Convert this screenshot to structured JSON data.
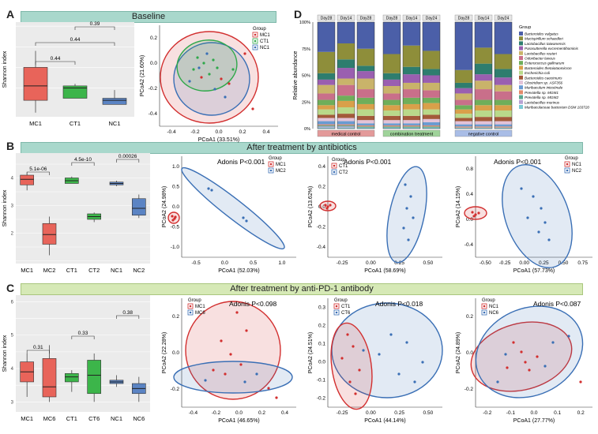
{
  "panels": {
    "A": {
      "letter": "A",
      "banner": "Baseline",
      "boxplot": {
        "ylabel": "Shannon index",
        "groups": [
          "MC1",
          "CT1",
          "NC1"
        ],
        "colors": [
          "#e8645a",
          "#3cb54a",
          "#5b84c4"
        ],
        "boxes": [
          {
            "q1": 3.7,
            "med": 4.05,
            "q3": 4.5,
            "min": 3.4,
            "max": 4.9
          },
          {
            "q1": 3.75,
            "med": 4.0,
            "q3": 4.05,
            "min": 3.75,
            "max": 4.1
          },
          {
            "q1": 3.6,
            "med": 3.7,
            "q3": 3.75,
            "min": 3.6,
            "max": 3.95
          }
        ],
        "brackets": [
          {
            "from": 0,
            "to": 1,
            "label": "0.44"
          },
          {
            "from": 0,
            "to": 2,
            "label": "0.44"
          },
          {
            "from": 1,
            "to": 2,
            "label": "0.39"
          }
        ]
      },
      "pcoa": {
        "xlabel": "PCoA1 (33.51%)",
        "ylabel": "PCoA2 (21.60%)",
        "legend_title": "Group",
        "legend": [
          "MC1",
          "CT1",
          "NC1"
        ],
        "xticks": [
          "-0.4",
          "-0.2",
          "0.0",
          "0.2",
          "0.4"
        ],
        "yticks": [
          "0.2",
          "0.0",
          "-0.2",
          "-0.4"
        ]
      },
      "stacked": {
        "ylabel": "Relative abundance",
        "yticks": [
          "100%",
          "75%",
          "50%",
          "25%",
          "0%"
        ],
        "groups": [
          {
            "name": "medical control",
            "days": [
              "Day28",
              "Day14",
              "Day28"
            ],
            "color": "#e39a9a"
          },
          {
            "name": "combination treatment",
            "days": [
              "Day28",
              "Day14",
              "Day24"
            ],
            "color": "#9fd39a"
          },
          {
            "name": "negative control",
            "days": [
              "Day28",
              "Day14",
              "Day24"
            ],
            "color": "#a9bde6"
          }
        ],
        "legend_title": "Group",
        "taxa": [
          {
            "name": "Bacteroides vulgatus",
            "color": "#4b5fa8"
          },
          {
            "name": "Mucispirillum schaedleri",
            "color": "#8e8e3a"
          },
          {
            "name": "Lactobacillus taiwanensis",
            "color": "#2e7d6e"
          },
          {
            "name": "Parasutterella excrementihominis",
            "color": "#9a5fb0"
          },
          {
            "name": "Lactobacillus reuteri",
            "color": "#c9b36a"
          },
          {
            "name": "Odoribacter laneus",
            "color": "#c96f8a"
          },
          {
            "name": "Enterococcus gallinarum",
            "color": "#6fae5a"
          },
          {
            "name": "Bacteroides thetaiotaomicron",
            "color": "#d9a04a"
          },
          {
            "name": "Escherichia coli",
            "color": "#b9d98a"
          },
          {
            "name": "Bacteroides caecimuris",
            "color": "#a35a3a"
          },
          {
            "name": "Clostridium sp. ASF356",
            "color": "#e3c3d8"
          },
          {
            "name": "Muribaculum intestinale",
            "color": "#6a9bd1"
          },
          {
            "name": "Prevotella sp. MGM1",
            "color": "#e38a6a"
          },
          {
            "name": "Prevotella sp. MGM2",
            "color": "#5aa88f"
          },
          {
            "name": "Lactobacillus murinus",
            "color": "#b7a3d3"
          },
          {
            "name": "Muribaculaceae bacterium DSM 103720",
            "color": "#7cc8d4"
          }
        ]
      }
    },
    "B": {
      "letter": "B",
      "banner": "After treatment by antibiotics",
      "boxplot": {
        "ylabel": "Shannon index",
        "groups": [
          "MC1",
          "MC2",
          "CT1",
          "CT2",
          "NC1",
          "NC2"
        ],
        "colors": [
          "#e8645a",
          "#e8645a",
          "#3cb54a",
          "#3cb54a",
          "#5b84c4",
          "#5b84c4"
        ],
        "boxes": [
          {
            "q1": 3.75,
            "med": 3.95,
            "q3": 4.1,
            "min": 3.55,
            "max": 4.2
          },
          {
            "q1": 1.6,
            "med": 1.95,
            "q3": 2.35,
            "min": 1.2,
            "max": 2.6
          },
          {
            "q1": 3.8,
            "med": 3.9,
            "q3": 4.0,
            "min": 3.8,
            "max": 4.05
          },
          {
            "q1": 2.5,
            "med": 2.6,
            "q3": 2.7,
            "min": 2.4,
            "max": 2.75
          },
          {
            "q1": 3.75,
            "med": 3.8,
            "q3": 3.85,
            "min": 3.7,
            "max": 3.9
          },
          {
            "q1": 2.65,
            "med": 2.9,
            "q3": 3.25,
            "min": 2.55,
            "max": 3.4
          }
        ],
        "brackets": [
          {
            "from": 0,
            "to": 1,
            "label": "5.1e-06"
          },
          {
            "from": 2,
            "to": 3,
            "label": "4.5e-10"
          },
          {
            "from": 4,
            "to": 5,
            "label": "0.00026"
          }
        ],
        "yticks": [
          "4",
          "3",
          "2"
        ]
      },
      "pcoas": [
        {
          "adonis": "Adonis P<0.001",
          "xlabel": "PCoA1 (52.03%)",
          "ylabel": "PCoA2 (24.98%)",
          "legend": [
            "MC1",
            "MC2"
          ],
          "xticks": [
            "-0.5",
            "0.0",
            "0.5",
            "1.0"
          ],
          "yticks": [
            "1.0",
            "0.5",
            "0.0",
            "-0.5",
            "-1.0"
          ]
        },
        {
          "adonis": "Adonis P<0.001",
          "xlabel": "PCoA1 (58.69%)",
          "ylabel": "PCoA2 (13.62%)",
          "legend": [
            "CT1",
            "CT2"
          ],
          "xticks": [
            "-0.25",
            "0.00",
            "0.25",
            "0.50"
          ],
          "yticks": [
            "0.4",
            "0.2",
            "0.0",
            "-0.2",
            "-0.4"
          ]
        },
        {
          "adonis": "Adonis P<0.001",
          "xlabel": "PCoA1 (57.73%)",
          "ylabel": "PCoA2 (14.15%)",
          "legend": [
            "NC1",
            "NC2"
          ],
          "xticks": [
            "-0.50",
            "-0.25",
            "0.00",
            "0.25",
            "0.50",
            "0.75"
          ],
          "yticks": [
            "0.8",
            "0.4",
            "0.0",
            "-0.4"
          ]
        }
      ]
    },
    "C": {
      "letter": "C",
      "banner": "After treatment by anti-PD-1 antibody",
      "boxplot": {
        "ylabel": "Shannon index",
        "groups": [
          "MC1",
          "MC6",
          "CT1",
          "CT6",
          "NC1",
          "NC6"
        ],
        "colors": [
          "#e8645a",
          "#e8645a",
          "#3cb54a",
          "#3cb54a",
          "#5b84c4",
          "#5b84c4"
        ],
        "boxes": [
          {
            "q1": 3.6,
            "med": 3.9,
            "q3": 4.2,
            "min": 3.15,
            "max": 4.45
          },
          {
            "q1": 3.15,
            "med": 3.45,
            "q3": 4.3,
            "min": 3.0,
            "max": 4.7
          },
          {
            "q1": 3.6,
            "med": 3.75,
            "q3": 3.85,
            "min": 3.3,
            "max": 3.95
          },
          {
            "q1": 3.25,
            "med": 3.8,
            "q3": 4.25,
            "min": 3.0,
            "max": 4.45
          },
          {
            "q1": 3.55,
            "med": 3.6,
            "q3": 3.65,
            "min": 3.45,
            "max": 3.8
          },
          {
            "q1": 3.25,
            "med": 3.4,
            "q3": 3.55,
            "min": 3.0,
            "max": 3.75
          }
        ],
        "brackets": [
          {
            "from": 0,
            "to": 1,
            "label": "0.31"
          },
          {
            "from": 2,
            "to": 3,
            "label": "0.33"
          },
          {
            "from": 4,
            "to": 5,
            "label": "0.38"
          }
        ],
        "yticks": [
          "6",
          "5",
          "4",
          "3"
        ]
      },
      "pcoas": [
        {
          "adonis": "Adonis P<0.098",
          "xlabel": "PCoA1 (46.65%)",
          "ylabel": "PCoA2 (22.28%)",
          "legend": [
            "MC1",
            "MC6"
          ],
          "xticks": [
            "-0.4",
            "-0.2",
            "0.0",
            "0.2",
            "0.4"
          ],
          "yticks": [
            "0.2",
            "0.0",
            "-0.2"
          ]
        },
        {
          "adonis": "Adonis P<0.018",
          "xlabel": "PCoA1 (44.14%)",
          "ylabel": "PCoA2 (24.51%)",
          "legend": [
            "CT1",
            "CT6"
          ],
          "xticks": [
            "-0.25",
            "0.00",
            "0.25",
            "0.50"
          ],
          "yticks": [
            "0.3",
            "0.2",
            "0.1",
            "0.0",
            "-0.1",
            "-0.2"
          ]
        },
        {
          "adonis": "Adonis P<0.087",
          "xlabel": "PCoA1 (27.77%)",
          "ylabel": "PCoA2 (24.89%)",
          "legend": [
            "NC1",
            "NC6"
          ],
          "xticks": [
            "-0.2",
            "-0.1",
            "0.0",
            "0.1",
            "0.2"
          ],
          "yticks": [
            "0.2",
            "0.0",
            "-0.2"
          ]
        }
      ]
    },
    "D": {
      "letter": "D"
    }
  }
}
